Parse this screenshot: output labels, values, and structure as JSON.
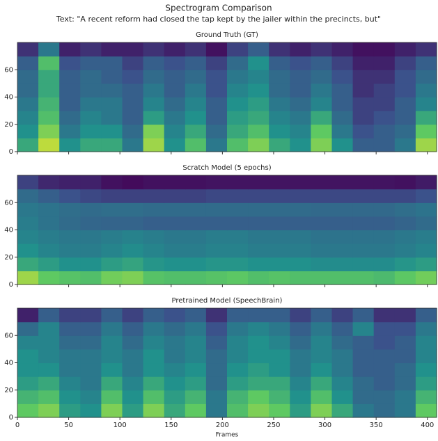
{
  "title": "Spectrogram Comparison",
  "subtitle": "Text: \"A recent reform had closed the tap kept by the jailer within the precincts, but\"",
  "chart_data": [
    {
      "type": "heatmap",
      "title": "Ground Truth (GT)",
      "colormap": "viridis",
      "xlim": [
        0,
        409
      ],
      "ylim": [
        0,
        80
      ],
      "yticks": [
        0,
        20,
        40,
        60
      ],
      "z": [
        [
          0.6,
          0.9,
          0.5,
          0.6,
          0.6,
          0.4,
          0.85,
          0.5,
          0.7,
          0.4,
          0.7,
          0.8,
          0.6,
          0.5,
          0.8,
          0.5,
          0.3,
          0.3,
          0.4,
          0.85
        ],
        [
          0.5,
          0.8,
          0.4,
          0.5,
          0.5,
          0.35,
          0.8,
          0.45,
          0.6,
          0.35,
          0.6,
          0.7,
          0.5,
          0.45,
          0.75,
          0.4,
          0.25,
          0.3,
          0.35,
          0.75
        ],
        [
          0.45,
          0.7,
          0.35,
          0.45,
          0.4,
          0.3,
          0.55,
          0.4,
          0.5,
          0.3,
          0.55,
          0.6,
          0.45,
          0.4,
          0.6,
          0.35,
          0.2,
          0.25,
          0.3,
          0.6
        ],
        [
          0.4,
          0.65,
          0.3,
          0.4,
          0.4,
          0.3,
          0.45,
          0.35,
          0.45,
          0.3,
          0.5,
          0.55,
          0.4,
          0.35,
          0.45,
          0.3,
          0.2,
          0.2,
          0.3,
          0.45
        ],
        [
          0.35,
          0.6,
          0.3,
          0.35,
          0.35,
          0.3,
          0.4,
          0.3,
          0.4,
          0.25,
          0.45,
          0.5,
          0.35,
          0.3,
          0.4,
          0.3,
          0.15,
          0.2,
          0.25,
          0.4
        ],
        [
          0.35,
          0.6,
          0.3,
          0.35,
          0.3,
          0.25,
          0.35,
          0.3,
          0.35,
          0.25,
          0.4,
          0.45,
          0.35,
          0.3,
          0.35,
          0.25,
          0.15,
          0.15,
          0.25,
          0.35
        ],
        [
          0.3,
          0.7,
          0.25,
          0.3,
          0.3,
          0.2,
          0.3,
          0.25,
          0.3,
          0.2,
          0.35,
          0.5,
          0.3,
          0.25,
          0.3,
          0.2,
          0.1,
          0.1,
          0.2,
          0.3
        ],
        [
          0.15,
          0.4,
          0.1,
          0.15,
          0.1,
          0.1,
          0.15,
          0.1,
          0.15,
          0.05,
          0.2,
          0.3,
          0.15,
          0.1,
          0.15,
          0.1,
          0.05,
          0.05,
          0.1,
          0.15
        ]
      ]
    },
    {
      "type": "heatmap",
      "title": "Scratch Model (5 epochs)",
      "colormap": "viridis",
      "xlim": [
        0,
        409
      ],
      "ylim": [
        0,
        80
      ],
      "yticks": [
        0,
        20,
        40,
        60
      ],
      "z": [
        [
          0.85,
          0.75,
          0.72,
          0.7,
          0.78,
          0.8,
          0.72,
          0.7,
          0.7,
          0.72,
          0.74,
          0.7,
          0.72,
          0.7,
          0.7,
          0.7,
          0.7,
          0.68,
          0.74,
          0.78
        ],
        [
          0.6,
          0.55,
          0.5,
          0.5,
          0.55,
          0.58,
          0.52,
          0.5,
          0.5,
          0.52,
          0.52,
          0.5,
          0.5,
          0.5,
          0.48,
          0.48,
          0.48,
          0.48,
          0.52,
          0.55
        ],
        [
          0.5,
          0.45,
          0.42,
          0.42,
          0.45,
          0.48,
          0.45,
          0.42,
          0.42,
          0.44,
          0.44,
          0.42,
          0.42,
          0.42,
          0.4,
          0.4,
          0.4,
          0.4,
          0.42,
          0.45
        ],
        [
          0.45,
          0.42,
          0.4,
          0.4,
          0.42,
          0.44,
          0.42,
          0.4,
          0.4,
          0.42,
          0.42,
          0.4,
          0.4,
          0.4,
          0.38,
          0.38,
          0.38,
          0.38,
          0.4,
          0.42
        ],
        [
          0.42,
          0.38,
          0.35,
          0.33,
          0.32,
          0.32,
          0.3,
          0.3,
          0.3,
          0.3,
          0.3,
          0.3,
          0.3,
          0.3,
          0.3,
          0.3,
          0.3,
          0.3,
          0.32,
          0.35
        ],
        [
          0.4,
          0.38,
          0.36,
          0.35,
          0.36,
          0.36,
          0.35,
          0.35,
          0.35,
          0.35,
          0.35,
          0.35,
          0.35,
          0.35,
          0.34,
          0.34,
          0.34,
          0.34,
          0.36,
          0.38
        ],
        [
          0.35,
          0.3,
          0.25,
          0.22,
          0.2,
          0.2,
          0.2,
          0.2,
          0.2,
          0.22,
          0.22,
          0.22,
          0.22,
          0.22,
          0.22,
          0.22,
          0.22,
          0.22,
          0.22,
          0.25
        ],
        [
          0.2,
          0.12,
          0.1,
          0.1,
          0.05,
          0.03,
          0.05,
          0.05,
          0.05,
          0.06,
          0.06,
          0.06,
          0.06,
          0.06,
          0.06,
          0.06,
          0.06,
          0.06,
          0.05,
          0.08
        ]
      ]
    },
    {
      "type": "heatmap",
      "title": "Pretrained Model (SpeechBrain)",
      "colormap": "viridis",
      "xlim": [
        0,
        409
      ],
      "ylim": [
        0,
        80
      ],
      "yticks": [
        0,
        20,
        40,
        60
      ],
      "xticks": [
        0,
        50,
        100,
        150,
        200,
        250,
        300,
        350,
        400
      ],
      "xlabel": "Frames",
      "z": [
        [
          0.75,
          0.8,
          0.55,
          0.5,
          0.8,
          0.55,
          0.8,
          0.6,
          0.75,
          0.4,
          0.7,
          0.8,
          0.75,
          0.55,
          0.8,
          0.6,
          0.4,
          0.35,
          0.4,
          0.75
        ],
        [
          0.65,
          0.7,
          0.5,
          0.45,
          0.7,
          0.5,
          0.7,
          0.55,
          0.65,
          0.4,
          0.65,
          0.75,
          0.65,
          0.5,
          0.7,
          0.5,
          0.35,
          0.35,
          0.4,
          0.65
        ],
        [
          0.55,
          0.6,
          0.45,
          0.4,
          0.6,
          0.45,
          0.6,
          0.5,
          0.55,
          0.35,
          0.55,
          0.6,
          0.6,
          0.45,
          0.6,
          0.45,
          0.35,
          0.3,
          0.35,
          0.55
        ],
        [
          0.5,
          0.5,
          0.4,
          0.4,
          0.5,
          0.4,
          0.5,
          0.45,
          0.5,
          0.35,
          0.5,
          0.55,
          0.5,
          0.4,
          0.5,
          0.4,
          0.3,
          0.3,
          0.35,
          0.5
        ],
        [
          0.5,
          0.45,
          0.4,
          0.4,
          0.45,
          0.4,
          0.5,
          0.4,
          0.45,
          0.35,
          0.45,
          0.5,
          0.5,
          0.4,
          0.45,
          0.4,
          0.3,
          0.3,
          0.3,
          0.45
        ],
        [
          0.45,
          0.45,
          0.35,
          0.35,
          0.45,
          0.35,
          0.45,
          0.4,
          0.45,
          0.3,
          0.45,
          0.5,
          0.45,
          0.35,
          0.45,
          0.35,
          0.3,
          0.25,
          0.3,
          0.45
        ],
        [
          0.35,
          0.45,
          0.3,
          0.3,
          0.4,
          0.3,
          0.4,
          0.35,
          0.4,
          0.25,
          0.4,
          0.45,
          0.4,
          0.3,
          0.4,
          0.3,
          0.45,
          0.25,
          0.25,
          0.4
        ],
        [
          0.1,
          0.3,
          0.2,
          0.2,
          0.3,
          0.2,
          0.3,
          0.25,
          0.3,
          0.15,
          0.3,
          0.3,
          0.3,
          0.2,
          0.3,
          0.2,
          0.3,
          0.15,
          0.15,
          0.3
        ]
      ]
    }
  ]
}
